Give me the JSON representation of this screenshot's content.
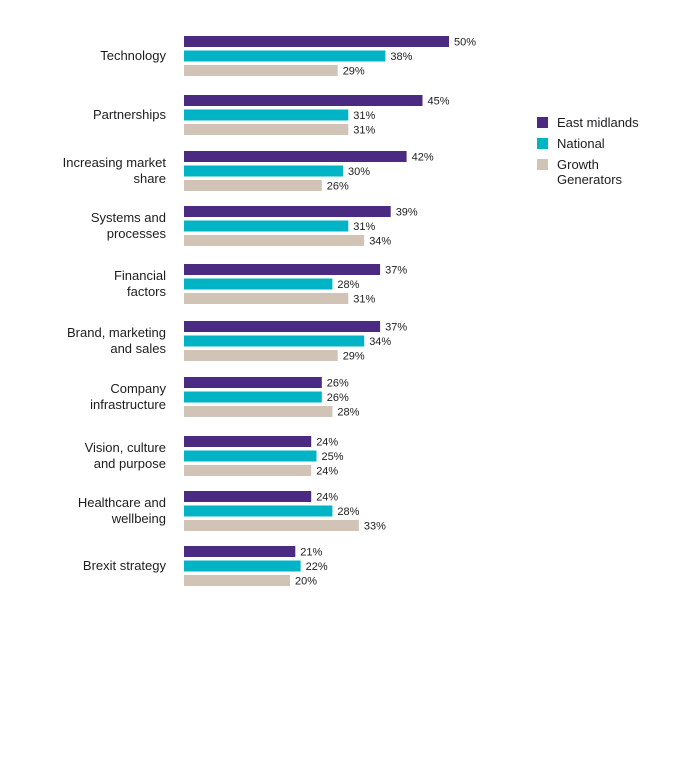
{
  "chart_data": {
    "type": "bar",
    "orientation": "horizontal",
    "categories": [
      "Technology",
      "Partnerships",
      "Increasing market share",
      "Systems and processes",
      "Financial factors",
      "Brand, marketing and sales",
      "Company infrastructure",
      "Vision, culture and purpose",
      "Healthcare and wellbeing",
      "Brexit strategy"
    ],
    "category_lines": [
      [
        "Technology"
      ],
      [
        "Partnerships"
      ],
      [
        "Increasing market",
        "share"
      ],
      [
        "Systems and",
        "processes"
      ],
      [
        "Financial",
        "factors"
      ],
      [
        "Brand, marketing",
        "and sales"
      ],
      [
        "Company",
        "infrastructure"
      ],
      [
        "Vision, culture",
        "and purpose"
      ],
      [
        "Healthcare and",
        "wellbeing"
      ],
      [
        "Brexit strategy"
      ]
    ],
    "series": [
      {
        "name": "East midlands",
        "color": "#4b2a82",
        "values": [
          50,
          45,
          42,
          39,
          37,
          37,
          26,
          24,
          24,
          21
        ],
        "labels": [
          "50%",
          "45%",
          "42%",
          "39%",
          "37%",
          "37%",
          "26%",
          "24%",
          "24%",
          "21%"
        ]
      },
      {
        "name": "National",
        "color": "#00b4c5",
        "values": [
          38,
          31,
          30,
          31,
          28,
          34,
          26,
          25,
          28,
          22
        ],
        "labels": [
          "38%",
          "31%",
          "30%",
          "31%",
          "28%",
          "34%",
          "26%",
          "25%",
          "28%",
          "22%"
        ]
      },
      {
        "name": "Growth Generators",
        "color": "#d1c3b6",
        "values": [
          29,
          31,
          26,
          34,
          31,
          29,
          28,
          24,
          33,
          20
        ],
        "labels": [
          "29%",
          "31%",
          "26%",
          "34%",
          "31%",
          "29%",
          "28%",
          "24%",
          "33%",
          "20%"
        ]
      }
    ],
    "legend_lines": [
      [
        "East midlands"
      ],
      [
        "National"
      ],
      [
        "Growth",
        "Generators"
      ]
    ],
    "value_unit": "%",
    "xlim": [
      0,
      50
    ],
    "legend_position": "right",
    "grid": false,
    "title": "",
    "xlabel": "",
    "ylabel": ""
  }
}
